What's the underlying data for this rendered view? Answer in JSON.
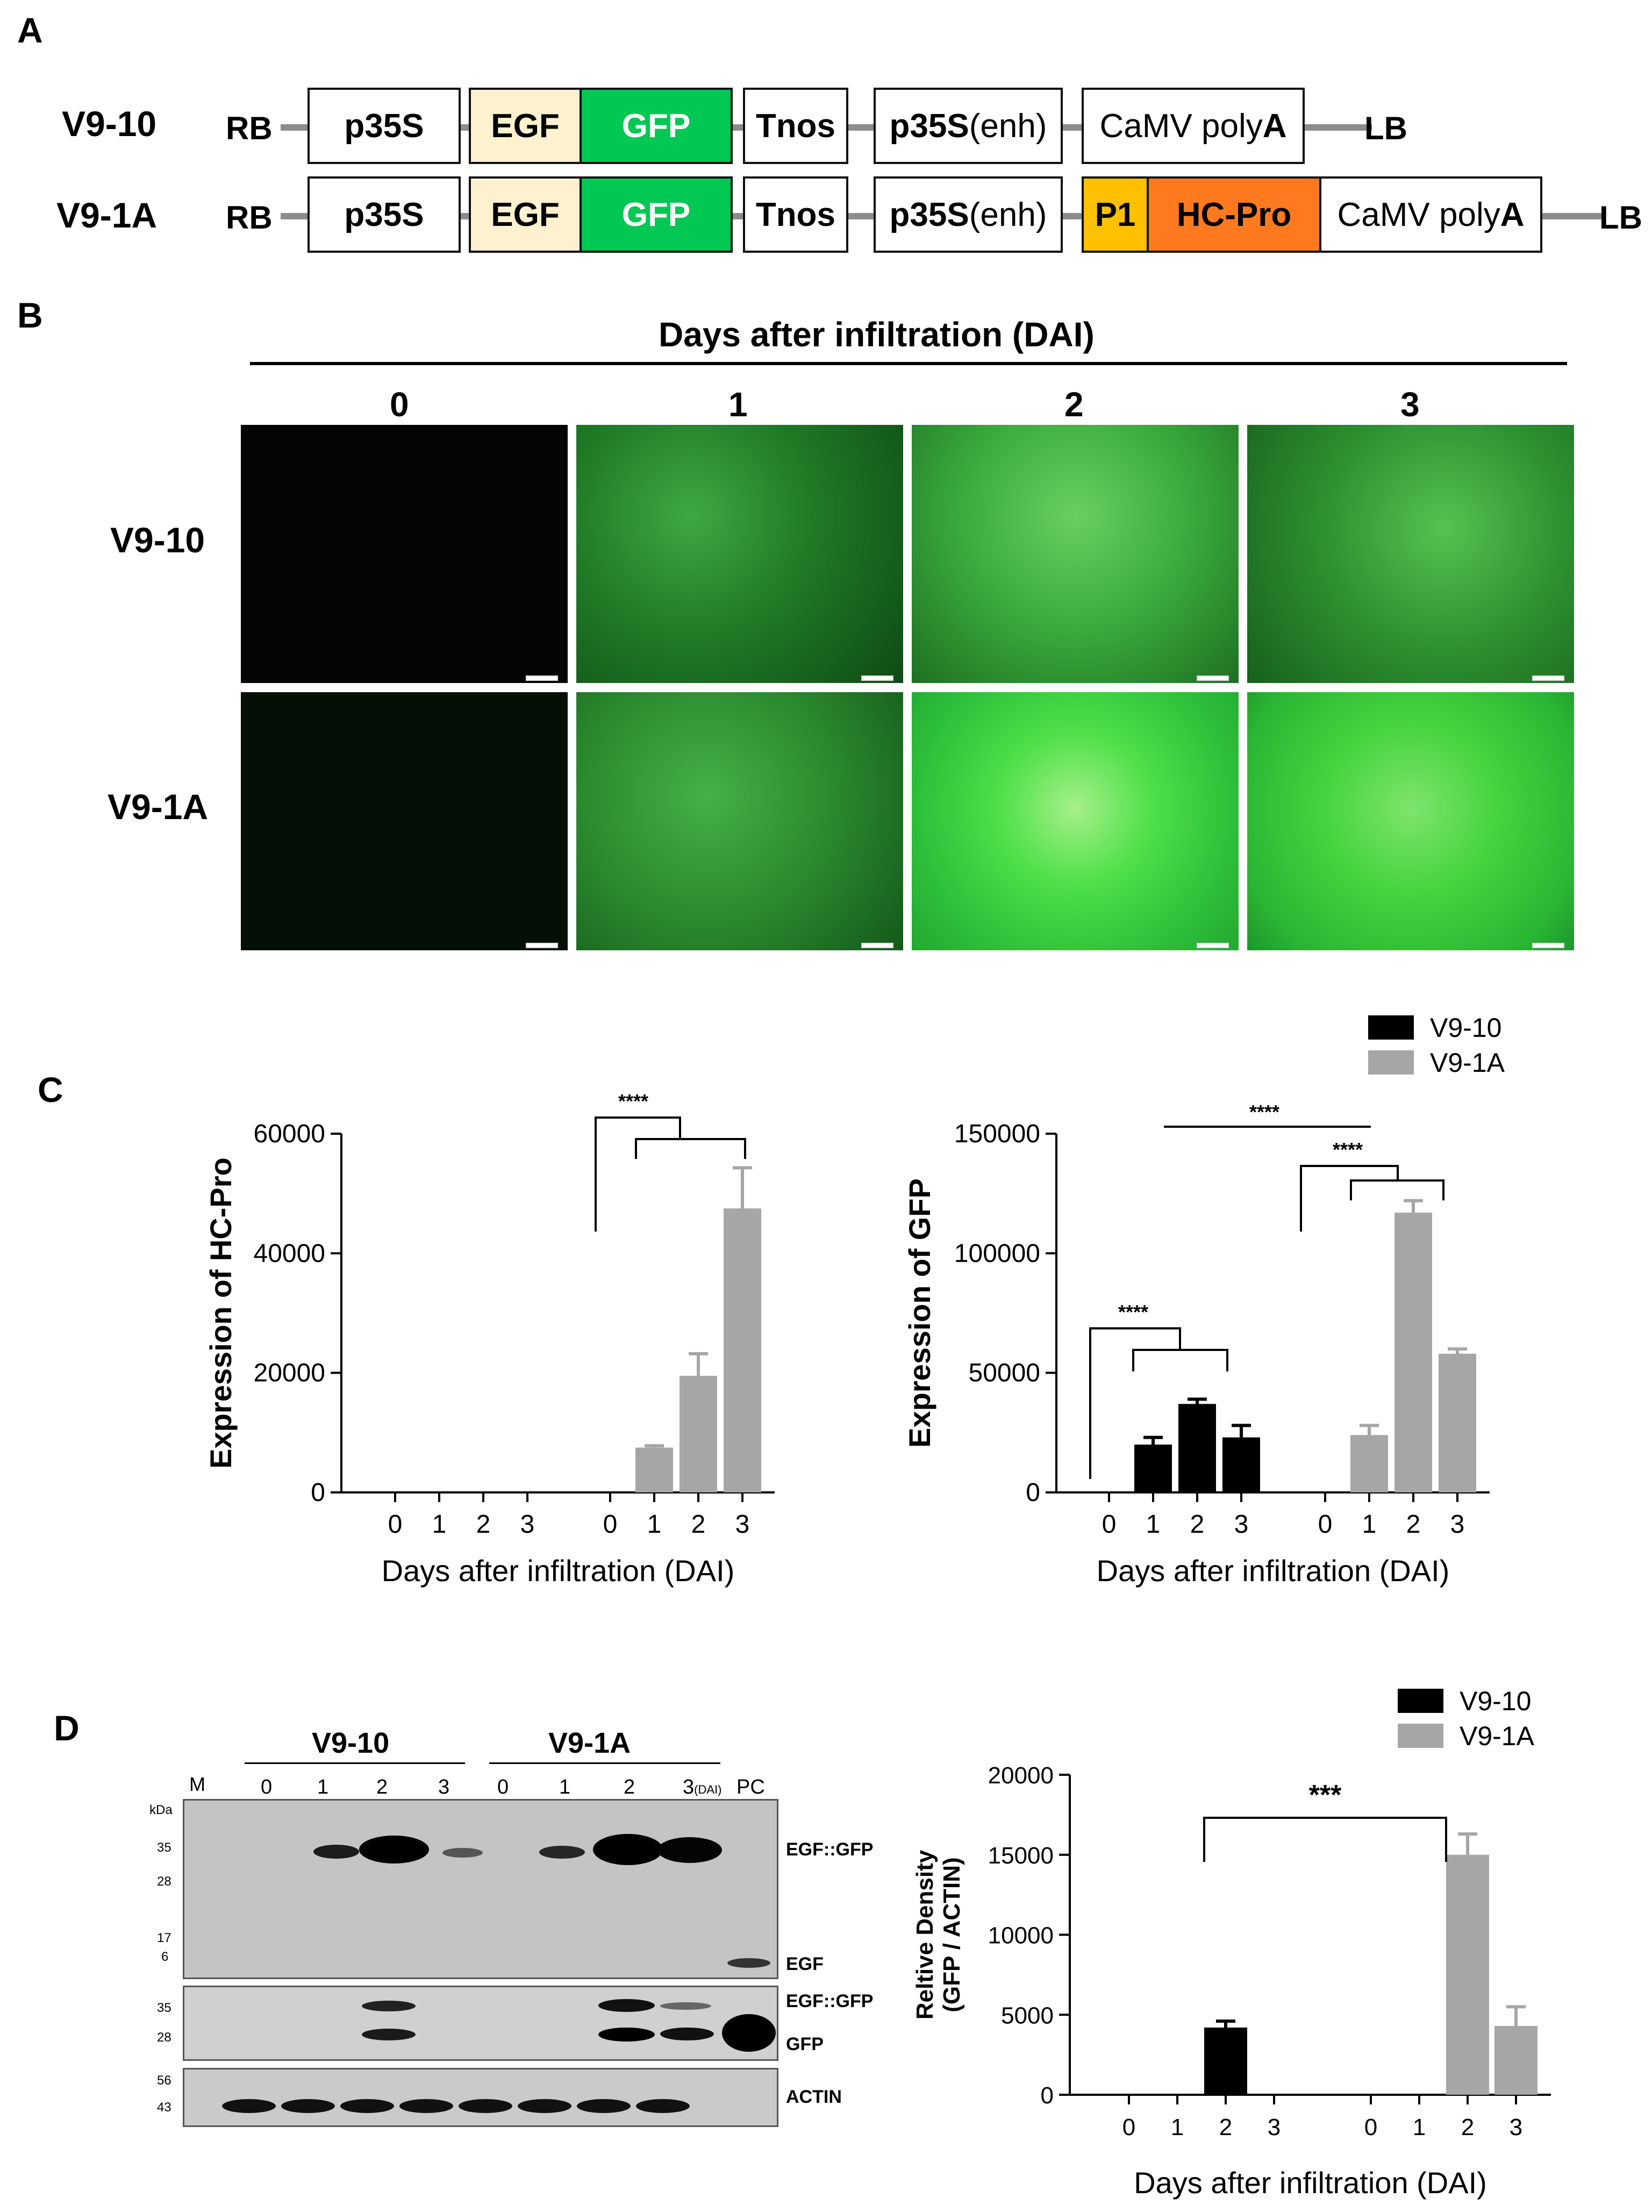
{
  "panels": {
    "a": "A",
    "b": "B",
    "c": "C",
    "d": "D"
  },
  "panel_a": {
    "constructs": [
      {
        "name": "V9-10",
        "rb": "RB",
        "lb": "LB",
        "parts": [
          "p35S",
          "EGF",
          "GFP",
          "Tnos",
          "p35S(enh)",
          "CaMV polyA"
        ]
      },
      {
        "name": "V9-1A",
        "rb": "RB",
        "lb": "LB",
        "parts": [
          "p35S",
          "EGF",
          "GFP",
          "Tnos",
          "p35S(enh)",
          "P1",
          "HC-Pro",
          "CaMV polyA"
        ]
      }
    ],
    "colors": {
      "EGF": "#fdf1cf",
      "GFP": "#00c853",
      "P1": "#ffc000",
      "HC-Pro": "#ff7a1f"
    }
  },
  "panel_b": {
    "title": "Days after infiltration (DAI)",
    "days": [
      "0",
      "1",
      "2",
      "3"
    ],
    "rows": [
      "V9-10",
      "V9-1A"
    ]
  },
  "panel_c": {
    "legend": [
      "V9-10",
      "V9-1A"
    ],
    "colors": {
      "V9-10": "#000000",
      "V9-1A": "#a6a6a6"
    },
    "sig": "****"
  },
  "panel_d": {
    "blot": {
      "marker": "M",
      "kda": "kDa",
      "groups": [
        "V9-10",
        "V9-1A"
      ],
      "lanes": [
        "0",
        "1",
        "2",
        "3",
        "0",
        "1",
        "2",
        "3",
        "PC"
      ],
      "dai_suffix": "(DAI)",
      "top_ladder": [
        "35",
        "28",
        "17",
        "6"
      ],
      "mid_ladder": [
        "35",
        "28"
      ],
      "bottom_ladder": [
        "56",
        "43"
      ],
      "top_labels": [
        "EGF::GFP",
        "EGF"
      ],
      "mid_labels": [
        "EGF::GFP",
        "GFP"
      ],
      "bottom_label": "ACTIN"
    },
    "legend": [
      "V9-10",
      "V9-1A"
    ],
    "sig": "***"
  },
  "chart_data": [
    {
      "type": "bar",
      "panel": "C-left",
      "ylabel": "Expression of HC-Pro",
      "xlabel": "Days after infiltration (DAI)",
      "categories": [
        "0",
        "1",
        "2",
        "3"
      ],
      "ylim": [
        0,
        60000
      ],
      "yticks": [
        "0",
        "20000",
        "40000",
        "60000"
      ],
      "series": [
        {
          "name": "V9-10",
          "values": [
            0,
            0,
            0,
            0
          ],
          "errors": [
            0,
            0,
            0,
            0
          ]
        },
        {
          "name": "V9-1A",
          "values": [
            0,
            7500,
            19500,
            47500
          ],
          "errors": [
            0,
            300,
            3700,
            6800
          ]
        }
      ],
      "annotations": [
        "****"
      ]
    },
    {
      "type": "bar",
      "panel": "C-right",
      "ylabel": "Expression of GFP",
      "xlabel": "Days after infiltration (DAI)",
      "categories": [
        "0",
        "1",
        "2",
        "3"
      ],
      "ylim": [
        0,
        150000
      ],
      "yticks": [
        "0",
        "50000",
        "100000",
        "150000"
      ],
      "series": [
        {
          "name": "V9-10",
          "values": [
            0,
            20000,
            37000,
            23000
          ],
          "errors": [
            0,
            3000,
            2000,
            5000
          ]
        },
        {
          "name": "V9-1A",
          "values": [
            0,
            24000,
            117000,
            58000
          ],
          "errors": [
            0,
            4000,
            5000,
            2000
          ]
        }
      ],
      "annotations": [
        "****",
        "****",
        "****"
      ]
    },
    {
      "type": "bar",
      "panel": "D-right",
      "ylabel": "Reltive Density (GFP / ACTIN)",
      "ylabel_lines": [
        "Reltive Density",
        "(GFP / ACTIN)"
      ],
      "xlabel": "Days after infiltration (DAI)",
      "categories": [
        "0",
        "1",
        "2",
        "3"
      ],
      "ylim": [
        0,
        20000
      ],
      "yticks": [
        "0",
        "5000",
        "10000",
        "15000",
        "20000"
      ],
      "series": [
        {
          "name": "V9-10",
          "values": [
            0,
            0,
            4200,
            0
          ],
          "errors": [
            0,
            0,
            400,
            0
          ]
        },
        {
          "name": "V9-1A",
          "values": [
            0,
            0,
            15000,
            4300
          ],
          "errors": [
            0,
            0,
            1300,
            1200
          ]
        }
      ],
      "annotations": [
        "***"
      ]
    }
  ]
}
